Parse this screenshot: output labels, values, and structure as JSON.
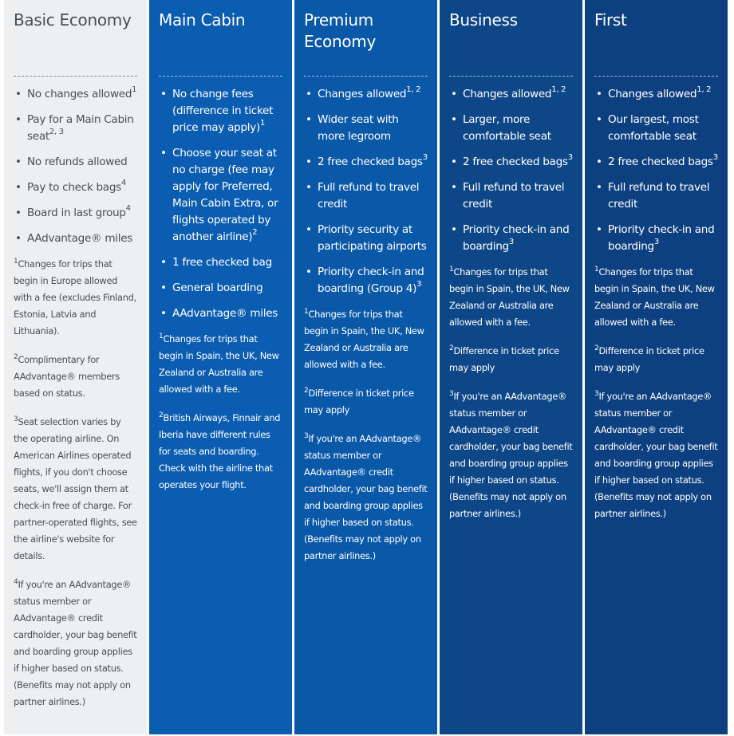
{
  "columns": [
    {
      "title": "Basic Economy",
      "theme": "#eeeff1",
      "items": [
        {
          "text": "No changes allowed",
          "sup": "1"
        },
        {
          "text": "Pay for a Main Cabin seat",
          "sup": "2, 3"
        },
        {
          "text": "No refunds allowed",
          "sup": ""
        },
        {
          "text": "Pay to check bags",
          "sup": "4"
        },
        {
          "text": "Board in last group",
          "sup": "4"
        },
        {
          "text": "AAdvantage® miles",
          "sup": ""
        }
      ],
      "footnotes": [
        {
          "n": "1",
          "text": "Changes for trips that begin in Europe allowed with a fee (excludes Finland, Estonia, Latvia and Lithuania)."
        },
        {
          "n": "2",
          "text": "Complimentary for AAdvantage® members based on status."
        },
        {
          "n": "3",
          "text": "Seat selection varies by the operating airline. On American Airlines operated flights, if you don't choose seats, we'll assign them at check-in free of charge. For partner-operated flights, see the airline's website for details."
        },
        {
          "n": "4",
          "text": "If you're an AAdvantage® status member or AAdvantage® credit cardholder, your bag benefit and boarding group applies if higher based on status. (Benefits may not apply on partner airlines.)"
        }
      ]
    },
    {
      "title": "Main Cabin",
      "theme": "#0b5db1",
      "items": [
        {
          "text": "No change fees (difference in ticket price may apply)",
          "sup": "1"
        },
        {
          "text": "Choose your seat at no charge (fee may apply for Preferred, Main Cabin Extra, or flights operated by another airline)",
          "sup": "2"
        },
        {
          "text": "1 free checked bag",
          "sup": ""
        },
        {
          "text": "General boarding",
          "sup": ""
        },
        {
          "text": "AAdvantage® miles",
          "sup": ""
        }
      ],
      "footnotes": [
        {
          "n": "1",
          "text": "Changes for trips that begin in Spain, the UK, New Zealand or Australia are allowed with a fee."
        },
        {
          "n": "2",
          "text": "British Airways, Finnair and Iberia have different rules for seats and boarding. Check with the airline that operates your flight."
        }
      ]
    },
    {
      "title": "Premium Economy",
      "theme": "#0a58a8",
      "items": [
        {
          "text": "Changes allowed",
          "sup": "1, 2"
        },
        {
          "text": "Wider seat with more legroom",
          "sup": ""
        },
        {
          "text": "2 free checked bags",
          "sup": "3"
        },
        {
          "text": "Full refund to travel credit",
          "sup": ""
        },
        {
          "text": "Priority security at participating airports",
          "sup": ""
        },
        {
          "text": "Priority check-in and boarding (Group 4)",
          "sup": "3"
        }
      ],
      "footnotes": [
        {
          "n": "1",
          "text": "Changes for trips that begin in Spain, the UK, New Zealand or Australia are allowed with a fee."
        },
        {
          "n": "2",
          "text": "Difference in ticket price may apply"
        },
        {
          "n": "3",
          "text": "If you're an AAdvantage® status member or AAdvantage® credit cardholder, your bag benefit and boarding group applies if higher based on status. (Benefits may not apply on partner airlines.)"
        }
      ]
    },
    {
      "title": "Business",
      "theme": "#0e4788",
      "items": [
        {
          "text": "Changes allowed",
          "sup": "1, 2"
        },
        {
          "text": "Larger, more comfortable seat",
          "sup": ""
        },
        {
          "text": "2 free checked bags",
          "sup": "3"
        },
        {
          "text": "Full refund to travel credit",
          "sup": ""
        },
        {
          "text": "Priority check-in and boarding",
          "sup": "3"
        }
      ],
      "footnotes": [
        {
          "n": "1",
          "text": "Changes for trips that begin in Spain, the UK, New Zealand or Australia are allowed with a fee."
        },
        {
          "n": "2",
          "text": "Difference in ticket price may apply"
        },
        {
          "n": "3",
          "text": "If you're an AAdvantage® status member or AAdvantage® credit cardholder, your bag benefit and boarding group applies if higher based on status. (Benefits may not apply on partner airlines.)"
        }
      ]
    },
    {
      "title": "First",
      "theme": "#0d4080",
      "items": [
        {
          "text": "Changes allowed",
          "sup": "1, 2"
        },
        {
          "text": "Our largest, most comfortable seat",
          "sup": ""
        },
        {
          "text": "2 free checked bags",
          "sup": "3"
        },
        {
          "text": "Full refund to travel credit",
          "sup": ""
        },
        {
          "text": "Priority check-in and boarding",
          "sup": "3"
        }
      ],
      "footnotes": [
        {
          "n": "1",
          "text": "Changes for trips that begin in Spain, the UK, New Zealand or Australia are allowed with a fee."
        },
        {
          "n": "2",
          "text": "Difference in ticket price may apply"
        },
        {
          "n": "3",
          "text": "If you're an AAdvantage® status member or AAdvantage® credit cardholder, your bag benefit and boarding group applies if higher based on status. (Benefits may not apply on partner airlines.)"
        }
      ]
    }
  ]
}
